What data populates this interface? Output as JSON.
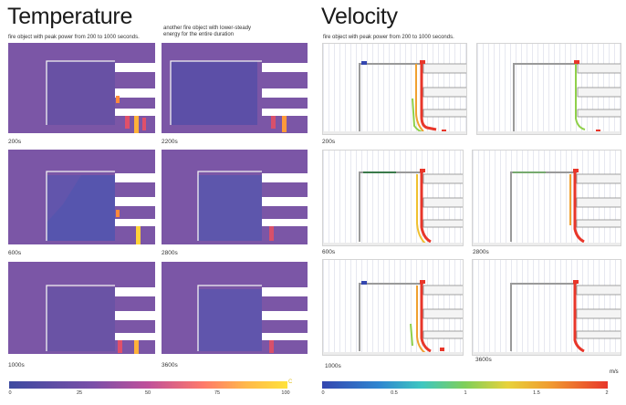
{
  "temperature": {
    "title": "Temperature",
    "note_left": "fire object with peak power from 200 to 1000 seconds.",
    "note_right_line1": "another fire object with lower-steady",
    "note_right_line2": "energy for the entire duration",
    "time_labels": [
      "200s",
      "2200s",
      "600s",
      "2800s",
      "1000s",
      "3600s"
    ],
    "colorbar": {
      "ticks": [
        "0",
        "25",
        "50",
        "75",
        "100"
      ],
      "unit": "C"
    }
  },
  "velocity": {
    "title": "Velocity",
    "note": "fire object with peak power from 200 to 1000 seconds.",
    "time_labels": [
      "200s",
      "600s",
      "2800s",
      "1000s",
      "3600s"
    ],
    "colorbar": {
      "ticks": [
        "0",
        "0.5",
        "1",
        "1.5",
        "2"
      ],
      "unit": "m/s"
    }
  },
  "colors": {
    "temp_background": "#7b56a6",
    "temp_cool": "#3d4aa0",
    "temp_hot": "#ffe23a",
    "vel_low": "#3446b0",
    "vel_high": "#e8362a"
  }
}
